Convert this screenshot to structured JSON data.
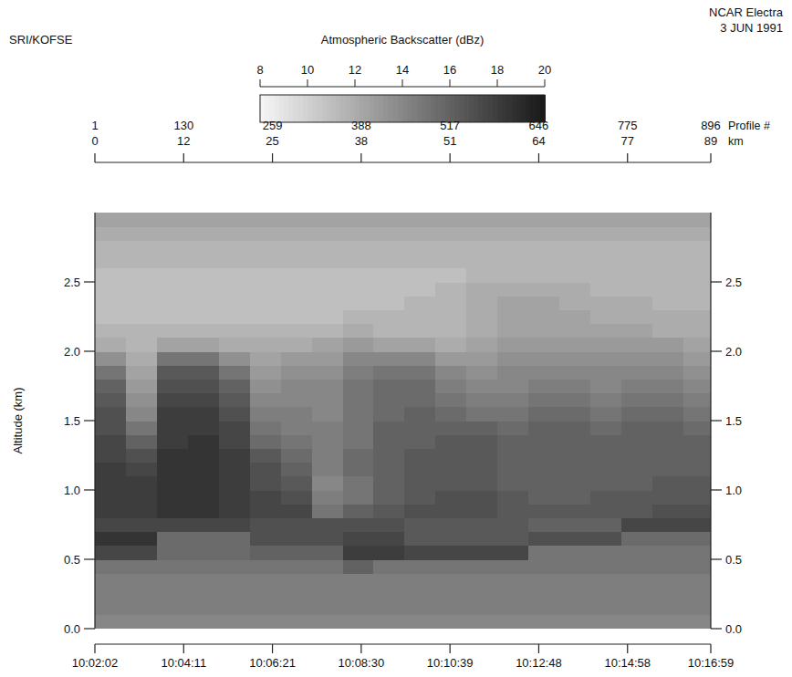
{
  "chart_data": {
    "type": "heatmap",
    "title": "NCAR Electra",
    "subtitle": "3 JUN 1991",
    "annotations": [
      "SRI/KOFSE"
    ],
    "y_label": "Altitude (km)",
    "x2label": "Profile #",
    "x3label": "km",
    "xlim": [
      1,
      896
    ],
    "ylim": [
      0,
      3.0
    ],
    "xticks": [
      {
        "value": 1,
        "label": "10:02:02"
      },
      {
        "value": 130,
        "label": "10:04:11"
      },
      {
        "value": 259,
        "label": "10:06:21"
      },
      {
        "value": 388,
        "label": "10:08:30"
      },
      {
        "value": 517,
        "label": "10:10:39"
      },
      {
        "value": 646,
        "label": "10:12:48"
      },
      {
        "value": 775,
        "label": "10:14:58"
      },
      {
        "value": 896,
        "label": "10:16:59"
      }
    ],
    "x2ticks": [
      1,
      130,
      259,
      388,
      517,
      646,
      775,
      896
    ],
    "x3ticks": [
      {
        "value": 1,
        "label": "0"
      },
      {
        "value": 130,
        "label": "12"
      },
      {
        "value": 259,
        "label": "25"
      },
      {
        "value": 388,
        "label": "38"
      },
      {
        "value": 517,
        "label": "51"
      },
      {
        "value": 646,
        "label": "64"
      },
      {
        "value": 775,
        "label": "77"
      },
      {
        "value": 896,
        "label": "89"
      }
    ],
    "yticks": [
      {
        "value": 0,
        "label": "0.0"
      },
      0.5,
      {
        "value": 1,
        "label": "1.0"
      },
      1.5,
      {
        "value": 2,
        "label": "2.0"
      },
      2.5
    ],
    "colorbar": {
      "label": "Atmospheric Backscatter (dBz)",
      "range": [
        8,
        20
      ],
      "ticks": [
        8,
        10,
        12,
        14,
        16,
        18,
        20
      ]
    },
    "x_edges": [
      1,
      46,
      91,
      136,
      181,
      226,
      271,
      316,
      361,
      406,
      451,
      496,
      541,
      586,
      631,
      676,
      721,
      766,
      811,
      856,
      896
    ],
    "y_edges": [
      0,
      0.1,
      0.2,
      0.3,
      0.4,
      0.5,
      0.6,
      0.7,
      0.8,
      0.9,
      1.0,
      1.1,
      1.2,
      1.3,
      1.4,
      1.5,
      1.6,
      1.7,
      1.8,
      1.9,
      2.0,
      2.1,
      2.2,
      2.3,
      2.4,
      2.5,
      2.6,
      2.7,
      2.8,
      2.9,
      3.0
    ],
    "cells": [
      [
        14,
        14,
        14,
        14,
        14,
        14,
        14,
        14,
        14,
        14,
        14,
        14,
        14,
        14,
        14,
        14,
        14,
        14,
        14,
        14
      ],
      [
        14.5,
        14.5,
        14.5,
        14.5,
        14.5,
        14.5,
        14.5,
        14.5,
        14.5,
        14.5,
        14.5,
        14.5,
        14.5,
        14.5,
        14.5,
        14.5,
        14.5,
        14.5,
        14.5,
        14.5
      ],
      [
        14.5,
        14.5,
        14.5,
        14.5,
        14.5,
        14.5,
        14.5,
        14.5,
        14.5,
        14.5,
        14.5,
        14.5,
        14.5,
        14.5,
        14.5,
        14.5,
        14.5,
        14.5,
        14.5,
        14.5
      ],
      [
        14.5,
        14.5,
        14.5,
        14.5,
        14.5,
        14.5,
        14.5,
        14.5,
        14.5,
        14.5,
        14.5,
        14.5,
        14.5,
        14.5,
        14.5,
        14.5,
        14.5,
        14.5,
        14.5,
        14.5
      ],
      [
        15,
        15,
        15,
        15,
        15,
        15,
        15,
        15,
        16,
        15,
        15,
        15,
        15,
        15,
        15,
        15,
        15,
        15,
        15,
        15
      ],
      [
        17.5,
        17.5,
        15.5,
        15.5,
        15.5,
        16,
        16,
        16,
        18,
        18,
        17.5,
        17.5,
        17.5,
        17.5,
        15,
        15,
        15,
        15,
        15,
        15
      ],
      [
        18.5,
        18.5,
        15.5,
        15.5,
        15.5,
        17,
        17,
        17,
        17.5,
        17.5,
        16.5,
        16.5,
        16.5,
        16.5,
        17,
        17,
        17,
        15.5,
        15.5,
        15.5
      ],
      [
        17.5,
        17.5,
        17.5,
        17.5,
        17.5,
        17,
        17,
        17,
        17,
        17,
        16.5,
        16.5,
        16.5,
        16.5,
        16,
        16,
        16,
        17.5,
        17.5,
        17.5
      ],
      [
        18,
        18,
        18.5,
        18.5,
        18,
        17.5,
        17.5,
        15,
        16,
        16.5,
        17,
        17,
        17,
        16.5,
        16.5,
        16.5,
        16.5,
        16.5,
        17,
        17
      ],
      [
        18,
        18,
        18.5,
        18.5,
        18,
        17.5,
        17,
        14.5,
        15,
        16,
        16.5,
        17,
        17,
        16.5,
        16,
        16,
        16.5,
        16.5,
        16.5,
        16.5
      ],
      [
        18,
        18,
        18.5,
        18.5,
        18,
        17,
        16.5,
        14,
        15,
        16,
        16.5,
        16.5,
        16.5,
        16,
        16,
        16,
        16,
        16,
        16.5,
        16.5
      ],
      [
        18,
        17.5,
        18.5,
        18.5,
        18,
        17,
        16,
        14.5,
        15.5,
        16,
        16.5,
        16.5,
        16.5,
        16,
        16,
        16,
        16,
        16,
        16,
        16
      ],
      [
        17.5,
        17,
        18.5,
        18.5,
        18,
        16.5,
        15.5,
        14.5,
        15.5,
        16,
        16.5,
        16.5,
        16.5,
        16,
        16,
        16,
        16,
        16,
        16,
        16
      ],
      [
        17.5,
        16,
        18,
        18.5,
        17.5,
        15.5,
        15,
        14.5,
        15,
        16,
        16,
        16.5,
        16.5,
        16,
        16,
        16,
        16,
        16,
        16,
        16
      ],
      [
        17,
        15,
        18,
        18,
        17.5,
        15,
        14.5,
        14.5,
        15,
        16,
        16,
        16,
        16,
        15.5,
        16,
        16,
        15.5,
        16,
        16,
        15.5
      ],
      [
        17,
        14,
        18,
        18,
        17,
        14.5,
        14.5,
        14,
        15,
        15.5,
        16,
        15.5,
        15,
        15,
        15.5,
        15.5,
        15,
        15.5,
        15.5,
        15
      ],
      [
        16.5,
        13.5,
        17.5,
        17.5,
        16.5,
        14,
        14,
        14,
        15,
        15.5,
        15.5,
        15,
        14.5,
        14.5,
        15,
        15,
        14.5,
        15,
        15,
        14.5
      ],
      [
        16,
        13,
        17,
        17,
        16,
        13.5,
        14,
        14,
        15,
        15.5,
        15.5,
        14.5,
        14,
        14,
        14.5,
        14.5,
        14,
        14.5,
        14.5,
        14
      ],
      [
        15,
        12.5,
        16.5,
        16.5,
        15,
        13,
        13.5,
        13.5,
        14.5,
        15,
        15,
        14,
        13.5,
        14,
        14,
        14,
        14,
        14,
        14,
        13.5
      ],
      [
        13.5,
        12,
        15,
        15,
        13.5,
        12.5,
        13,
        13,
        14,
        14,
        14,
        13,
        13,
        13.5,
        13.5,
        13.5,
        13.5,
        13.5,
        13.5,
        13
      ],
      [
        12,
        11.5,
        12.5,
        12.5,
        12,
        12,
        12,
        12.5,
        13,
        12.5,
        12.5,
        12,
        12.5,
        13,
        13,
        13,
        13,
        13,
        13,
        12.5
      ],
      [
        11.5,
        11.5,
        11.5,
        11.5,
        11.5,
        11.5,
        11.5,
        11.5,
        12,
        11.5,
        11.5,
        11.5,
        12,
        12.5,
        12.5,
        12.5,
        12.5,
        12.5,
        12,
        12
      ],
      [
        11,
        11,
        11,
        11,
        11,
        11,
        11,
        11,
        11.5,
        11.5,
        11.5,
        11.5,
        12,
        12.5,
        12.5,
        12.5,
        12,
        12,
        12,
        12
      ],
      [
        11,
        11,
        11,
        11,
        11,
        11,
        11,
        11,
        11,
        11,
        11.5,
        11.5,
        12,
        12.5,
        12.5,
        12,
        12,
        12,
        11.5,
        11.5
      ],
      [
        11,
        11,
        11,
        11,
        11,
        11,
        11,
        11,
        11,
        11,
        11,
        11.5,
        12,
        12,
        12,
        12,
        11.5,
        11.5,
        11.5,
        11.5
      ],
      [
        11,
        11,
        11,
        11,
        11,
        11,
        11,
        11,
        11,
        11,
        11,
        11,
        11.5,
        11.5,
        11.5,
        11.5,
        11.5,
        11.5,
        11.5,
        11.5
      ],
      [
        11.5,
        11.5,
        11.5,
        11.5,
        11.5,
        11.5,
        11.5,
        11.5,
        11.5,
        11.5,
        11.5,
        11.5,
        11.5,
        11.5,
        11.5,
        11.5,
        11.5,
        11.5,
        11.5,
        11.5
      ],
      [
        11.5,
        11.5,
        11.5,
        11.5,
        11.5,
        11.5,
        11.5,
        11.5,
        11.5,
        11.5,
        11.5,
        11.5,
        11.5,
        11.5,
        11.5,
        11.5,
        11.5,
        11.5,
        11.5,
        11.5
      ],
      [
        12,
        12,
        12,
        12,
        12,
        12,
        12,
        12,
        12,
        12,
        12,
        12,
        12,
        12,
        12,
        12,
        12,
        12,
        12,
        12
      ],
      [
        12.5,
        12.5,
        12.5,
        12.5,
        12.5,
        12.5,
        12.5,
        12.5,
        12.5,
        12.5,
        12.5,
        12.5,
        12.5,
        12.5,
        12.5,
        12.5,
        12.5,
        12.5,
        12.5,
        12.5
      ]
    ]
  }
}
